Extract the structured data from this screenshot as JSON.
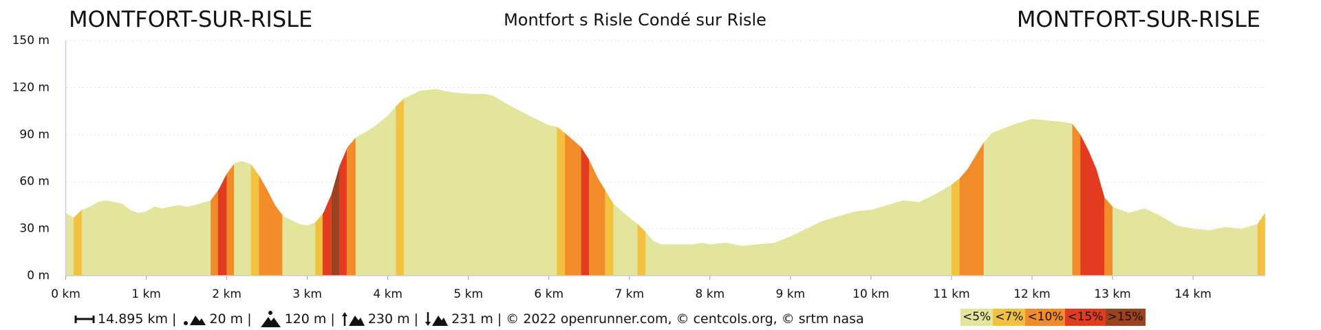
{
  "chart_data": {
    "type": "elevation_profile",
    "title_left": "MONTFORT-SUR-RISLE",
    "title_center": "Montfort s Risle Condé sur Risle",
    "title_right": "MONTFORT-SUR-RISLE",
    "x": [
      0,
      0.1,
      0.2,
      0.3,
      0.4,
      0.5,
      0.7,
      0.8,
      0.9,
      1.0,
      1.1,
      1.2,
      1.4,
      1.5,
      1.6,
      1.8,
      1.9,
      2.0,
      2.1,
      2.2,
      2.3,
      2.4,
      2.5,
      2.6,
      2.7,
      2.9,
      3.0,
      3.1,
      3.2,
      3.3,
      3.4,
      3.5,
      3.6,
      3.8,
      4.0,
      4.1,
      4.2,
      4.4,
      4.6,
      4.8,
      5.0,
      5.2,
      5.3,
      5.5,
      5.8,
      6.0,
      6.1,
      6.2,
      6.4,
      6.5,
      6.6,
      6.8,
      7.0,
      7.1,
      7.2,
      7.3,
      7.4,
      7.8,
      7.9,
      8.0,
      8.2,
      8.4,
      8.6,
      8.8,
      9.0,
      9.2,
      9.4,
      9.6,
      9.8,
      10.0,
      10.2,
      10.4,
      10.6,
      10.8,
      11.0,
      11.1,
      11.2,
      11.4,
      11.5,
      11.6,
      11.8,
      12.0,
      12.2,
      12.4,
      12.5,
      12.6,
      12.7,
      12.8,
      12.9,
      13.0,
      13.2,
      13.4,
      13.6,
      13.8,
      14.0,
      14.2,
      14.4,
      14.6,
      14.8,
      14.895
    ],
    "values": [
      40,
      37,
      42,
      44,
      47,
      48,
      46,
      42,
      40,
      41,
      44,
      43,
      45,
      44,
      45,
      48,
      55,
      65,
      72,
      73,
      71,
      64,
      55,
      45,
      38,
      33,
      32,
      34,
      40,
      52,
      70,
      82,
      88,
      94,
      102,
      108,
      113,
      118,
      119,
      117,
      116,
      116,
      115,
      109,
      101,
      96,
      95,
      91,
      82,
      74,
      63,
      46,
      37,
      33,
      28,
      22,
      20,
      20,
      21,
      20,
      21,
      19,
      20,
      21,
      25,
      30,
      35,
      38,
      41,
      42,
      45,
      48,
      47,
      52,
      58,
      62,
      68,
      85,
      91,
      93,
      97,
      100,
      99,
      98,
      97,
      90,
      80,
      68,
      50,
      44,
      40,
      43,
      38,
      32,
      30,
      29,
      31,
      30,
      33,
      40
    ],
    "bands": [
      {
        "from": 0.1,
        "to": 0.2,
        "grade": "<7%"
      },
      {
        "from": 1.8,
        "to": 1.89,
        "grade": "<10%"
      },
      {
        "from": 1.89,
        "to": 2.0,
        "grade": "<15%"
      },
      {
        "from": 2.0,
        "to": 2.09,
        "grade": "<10%"
      },
      {
        "from": 2.3,
        "to": 2.4,
        "grade": "<7%"
      },
      {
        "from": 2.4,
        "to": 2.69,
        "grade": "<10%"
      },
      {
        "from": 3.1,
        "to": 3.19,
        "grade": "<7%"
      },
      {
        "from": 3.19,
        "to": 3.3,
        "grade": "<15%"
      },
      {
        "from": 3.3,
        "to": 3.4,
        "grade": ">15%"
      },
      {
        "from": 3.4,
        "to": 3.49,
        "grade": "<15%"
      },
      {
        "from": 3.49,
        "to": 3.6,
        "grade": "<10%"
      },
      {
        "from": 4.1,
        "to": 4.2,
        "grade": "<7%"
      },
      {
        "from": 6.1,
        "to": 6.2,
        "grade": "<7%"
      },
      {
        "from": 6.2,
        "to": 6.4,
        "grade": "<10%"
      },
      {
        "from": 6.4,
        "to": 6.5,
        "grade": "<15%"
      },
      {
        "from": 6.5,
        "to": 6.7,
        "grade": "<10%"
      },
      {
        "from": 6.7,
        "to": 6.8,
        "grade": "<7%"
      },
      {
        "from": 7.1,
        "to": 7.2,
        "grade": "<7%"
      },
      {
        "from": 11.0,
        "to": 11.1,
        "grade": "<7%"
      },
      {
        "from": 11.1,
        "to": 11.4,
        "grade": "<10%"
      },
      {
        "from": 12.5,
        "to": 12.6,
        "grade": "<10%"
      },
      {
        "from": 12.6,
        "to": 12.9,
        "grade": "<15%"
      },
      {
        "from": 12.9,
        "to": 13.0,
        "grade": "<10%"
      },
      {
        "from": 14.8,
        "to": 14.895,
        "grade": "<7%"
      }
    ],
    "legend": [
      {
        "label": "<5%",
        "color": "#e4e59c"
      },
      {
        "label": "<7%",
        "color": "#f2c140"
      },
      {
        "label": "<10%",
        "color": "#f28c2b"
      },
      {
        "label": "<15%",
        "color": "#e23b20"
      },
      {
        "label": ">15%",
        "color": "#9b4220"
      }
    ],
    "xlim": [
      0,
      14.895
    ],
    "xticks": [
      {
        "value": 0,
        "label": "0 km"
      },
      {
        "value": 1,
        "label": "1 km"
      },
      {
        "value": 2,
        "label": "2 km"
      },
      {
        "value": 3,
        "label": "3 km"
      },
      {
        "value": 4,
        "label": "4 km"
      },
      {
        "value": 5,
        "label": "5 km"
      },
      {
        "value": 6,
        "label": "6 km"
      },
      {
        "value": 7,
        "label": "7 km"
      },
      {
        "value": 8,
        "label": "8 km"
      },
      {
        "value": 9,
        "label": "9 km"
      },
      {
        "value": 10,
        "label": "10 km"
      },
      {
        "value": 11,
        "label": "11 km"
      },
      {
        "value": 12,
        "label": "12 km"
      },
      {
        "value": 13,
        "label": "13 km"
      },
      {
        "value": 14,
        "label": "14 km"
      }
    ],
    "ylim": [
      0,
      150
    ],
    "yticks": [
      {
        "value": 0,
        "label": "0 m"
      },
      {
        "value": 30,
        "label": "30 m"
      },
      {
        "value": 60,
        "label": "60 m"
      },
      {
        "value": 90,
        "label": "90 m"
      },
      {
        "value": 120,
        "label": "120 m"
      },
      {
        "value": 150,
        "label": "150 m"
      }
    ],
    "grid": true
  },
  "footer": {
    "distance": "14.895 km",
    "min_elevation": "20 m",
    "max_elevation": "120 m",
    "climb": "230 m",
    "descent": "231 m",
    "credits": "© 2022 openrunner.com, © centcols.org, © srtm nasa",
    "separator": "|"
  }
}
